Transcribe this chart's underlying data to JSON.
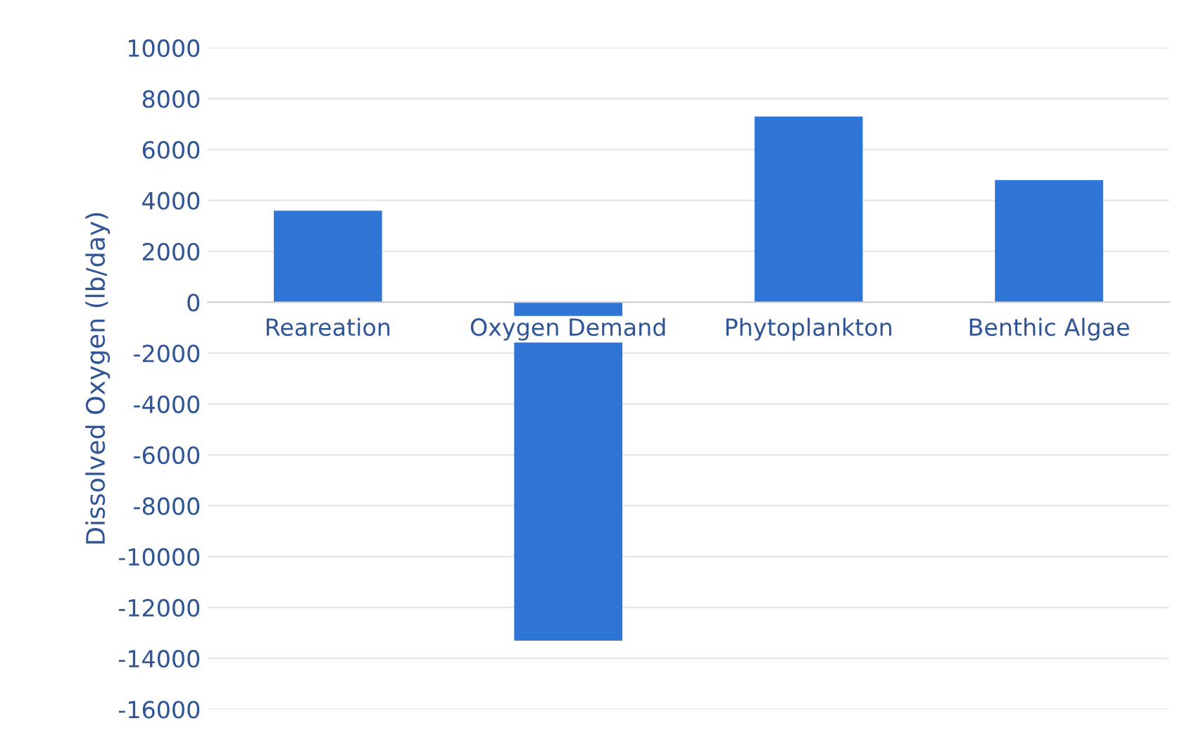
{
  "chart_data": {
    "type": "bar",
    "ylabel": "Dissolved Oxygen (lb/day)",
    "categories": [
      "Reareation",
      "Oxygen Demand",
      "Phytoplankton",
      "Benthic Algae"
    ],
    "values": [
      3600,
      -13300,
      7300,
      4800
    ],
    "color": "#2e75d6",
    "ylim": [
      -16000,
      10000
    ],
    "yticks": [
      -16000,
      -14000,
      -12000,
      -10000,
      -8000,
      -6000,
      -4000,
      -2000,
      0,
      2000,
      4000,
      6000,
      8000,
      10000
    ],
    "grid": "y"
  }
}
